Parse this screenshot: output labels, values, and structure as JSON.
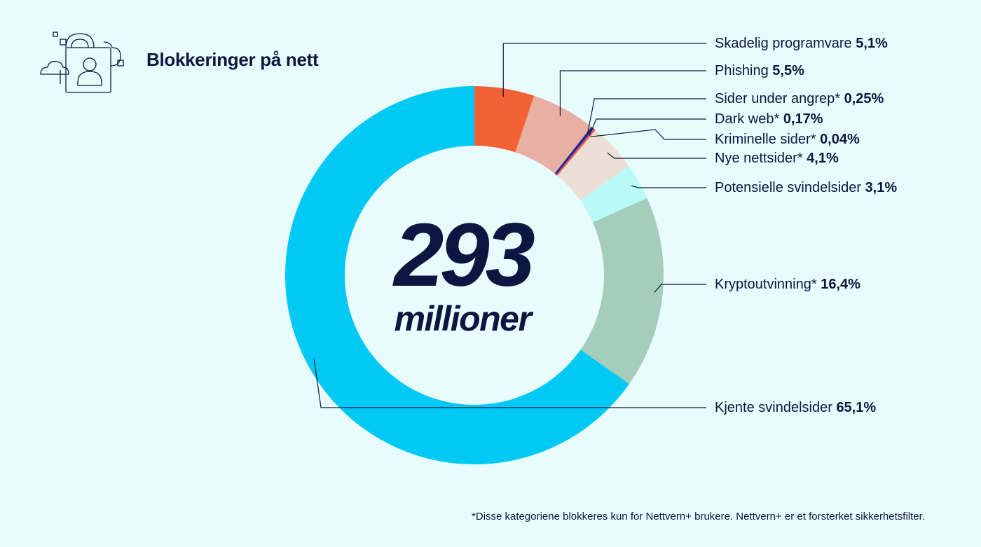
{
  "header": {
    "title": "Blokkeringer på nett",
    "icon": "cloud-lock-user-icon"
  },
  "center": {
    "number": "293",
    "unit": "millioner"
  },
  "footnote": "*Disse kategoriene blokkeres kun for Nettvern+ brukere. Nettvern+ er et forsterket sikkerhetsfilter.",
  "chart_data": {
    "type": "pie",
    "title": "Blokkeringer på nett",
    "total_label": "293 millioner",
    "series": [
      {
        "name": "Skadelig programvare",
        "value": 5.1,
        "label": "5,1%",
        "color": "#f36234"
      },
      {
        "name": "Phishing",
        "value": 5.5,
        "label": "5,5%",
        "color": "#e8b0a2"
      },
      {
        "name": "Sider under angrep*",
        "value": 0.25,
        "label": "0,25%",
        "color": "#1f2c8c"
      },
      {
        "name": "Dark web*",
        "value": 0.17,
        "label": "0,17%",
        "color": "#ef4f6a"
      },
      {
        "name": "Kriminelle sider*",
        "value": 0.04,
        "label": "0,04%",
        "color": "#f0b848"
      },
      {
        "name": "Nye nettsider*",
        "value": 4.1,
        "label": "4,1%",
        "color": "#ecdfd5"
      },
      {
        "name": "Potensielle svindelsider",
        "value": 3.1,
        "label": "3,1%",
        "color": "#b8faf8"
      },
      {
        "name": "Kryptoutvinning*",
        "value": 16.4,
        "label": "16,4%",
        "color": "#a5cdbb"
      },
      {
        "name": "Kjente svindelsider",
        "value": 65.1,
        "label": "65,1%",
        "color": "#00c9f5"
      }
    ]
  }
}
